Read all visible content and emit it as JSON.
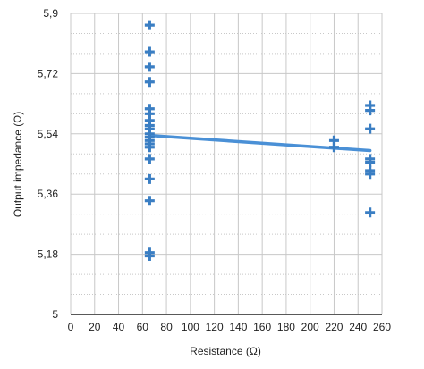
{
  "chart_data": {
    "type": "scatter",
    "xlabel": "Resistance (Ω)",
    "ylabel": "Output impedance (Ω)",
    "xlim": [
      0,
      260
    ],
    "ylim": [
      5.0,
      5.9
    ],
    "x_ticks": [
      0,
      20,
      40,
      60,
      80,
      100,
      120,
      140,
      160,
      180,
      200,
      220,
      240,
      260
    ],
    "x_tick_labels": [
      "0",
      "20",
      "40",
      "60",
      "80",
      "100",
      "120",
      "140",
      "160",
      "180",
      "200",
      "220",
      "240",
      "260"
    ],
    "y_ticks": [
      5.0,
      5.18,
      5.36,
      5.54,
      5.72,
      5.9
    ],
    "y_tick_labels": [
      "5",
      "5,18",
      "5,36",
      "5,54",
      "5,72",
      "5,9"
    ],
    "grid": true,
    "marker": "plus",
    "colors": {
      "points": "#3a7ec3",
      "trendline": "#4a90d6",
      "grid": "#c8c8c8",
      "axis": "#222222"
    },
    "series": [
      {
        "points": [
          {
            "x": 66,
            "y": 5.865
          },
          {
            "x": 66,
            "y": 5.785
          },
          {
            "x": 66,
            "y": 5.74
          },
          {
            "x": 66,
            "y": 5.695
          },
          {
            "x": 66,
            "y": 5.615
          },
          {
            "x": 66,
            "y": 5.6
          },
          {
            "x": 66,
            "y": 5.58
          },
          {
            "x": 66,
            "y": 5.565
          },
          {
            "x": 66,
            "y": 5.555
          },
          {
            "x": 66,
            "y": 5.54
          },
          {
            "x": 66,
            "y": 5.53
          },
          {
            "x": 66,
            "y": 5.52
          },
          {
            "x": 66,
            "y": 5.51
          },
          {
            "x": 66,
            "y": 5.5
          },
          {
            "x": 66,
            "y": 5.465
          },
          {
            "x": 66,
            "y": 5.405
          },
          {
            "x": 66,
            "y": 5.34
          },
          {
            "x": 66,
            "y": 5.185
          },
          {
            "x": 66,
            "y": 5.175
          },
          {
            "x": 220,
            "y": 5.52
          },
          {
            "x": 220,
            "y": 5.5
          },
          {
            "x": 250,
            "y": 5.625
          },
          {
            "x": 250,
            "y": 5.61
          },
          {
            "x": 250,
            "y": 5.555
          },
          {
            "x": 250,
            "y": 5.465
          },
          {
            "x": 250,
            "y": 5.455
          },
          {
            "x": 250,
            "y": 5.43
          },
          {
            "x": 250,
            "y": 5.42
          },
          {
            "x": 250,
            "y": 5.305
          }
        ]
      }
    ],
    "trendline": {
      "type": "linear",
      "x": [
        66,
        250
      ],
      "y": [
        5.535,
        5.49
      ]
    }
  }
}
